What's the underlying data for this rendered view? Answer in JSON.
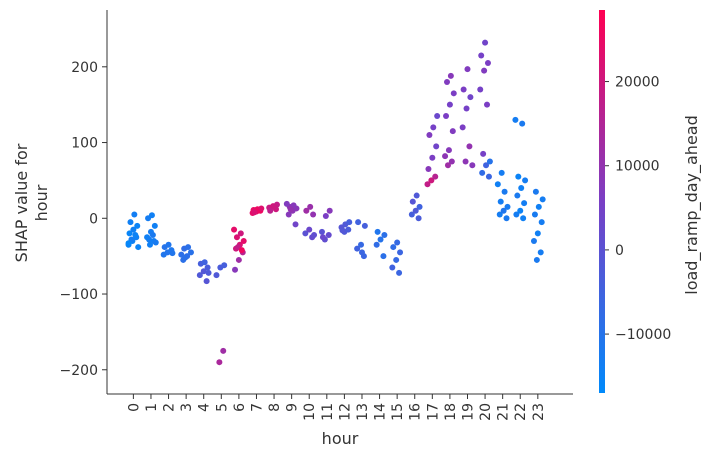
{
  "chart_data": {
    "type": "scatter",
    "subtype": "shap_dependence",
    "xlabel": "hour",
    "ylabel_lines": [
      "SHAP value for",
      "hour"
    ],
    "x_ticks": [
      0,
      1,
      2,
      3,
      4,
      5,
      6,
      7,
      8,
      9,
      10,
      11,
      12,
      13,
      14,
      15,
      16,
      17,
      18,
      19,
      20,
      21,
      22,
      23
    ],
    "y_ticks": [
      200,
      100,
      0,
      -100,
      -200
    ],
    "y_tick_labels": [
      "200",
      "100",
      "0",
      "−100",
      "−200"
    ],
    "xlim": [
      -1.5,
      25
    ],
    "ylim": [
      -232,
      275
    ],
    "colorbar": {
      "label": "load_ramp_day_ahead",
      "min": -17000,
      "max": 28500,
      "ticks": [
        20000,
        10000,
        0,
        -10000
      ],
      "tick_labels": [
        "20000",
        "10000",
        "0",
        "−10000"
      ],
      "color_low": "#008afb",
      "color_mid": "#7a3fc5",
      "color_high": "#ff0052"
    },
    "points": [
      {
        "hour": 0,
        "shap": -35,
        "feat": -15000
      },
      {
        "hour": 0,
        "shap": -30,
        "feat": -14500
      },
      {
        "hour": 0,
        "shap": -25,
        "feat": -14000
      },
      {
        "hour": 0,
        "shap": -20,
        "feat": -15500
      },
      {
        "hour": 0,
        "shap": -15,
        "feat": -14000
      },
      {
        "hour": 0,
        "shap": -10,
        "feat": -15000
      },
      {
        "hour": 0,
        "shap": -5,
        "feat": -14000
      },
      {
        "hour": 0,
        "shap": 5,
        "feat": -13500
      },
      {
        "hour": 0,
        "shap": -38,
        "feat": -15000
      },
      {
        "hour": 0,
        "shap": -28,
        "feat": -13000
      },
      {
        "hour": 0,
        "shap": -22,
        "feat": -14500
      },
      {
        "hour": 0,
        "shap": -33,
        "feat": -16000
      },
      {
        "hour": 1,
        "shap": -35,
        "feat": -14000
      },
      {
        "hour": 1,
        "shap": -30,
        "feat": -13500
      },
      {
        "hour": 1,
        "shap": -25,
        "feat": -14000
      },
      {
        "hour": 1,
        "shap": -18,
        "feat": -13000
      },
      {
        "hour": 1,
        "shap": -10,
        "feat": -14000
      },
      {
        "hour": 1,
        "shap": 0,
        "feat": -13000
      },
      {
        "hour": 1,
        "shap": 4,
        "feat": -14000
      },
      {
        "hour": 1,
        "shap": -32,
        "feat": -12500
      },
      {
        "hour": 1,
        "shap": -28,
        "feat": -13500
      },
      {
        "hour": 1,
        "shap": -22,
        "feat": -12000
      },
      {
        "hour": 2,
        "shap": -48,
        "feat": -11000
      },
      {
        "hour": 2,
        "shap": -45,
        "feat": -10500
      },
      {
        "hour": 2,
        "shap": -42,
        "feat": -11500
      },
      {
        "hour": 2,
        "shap": -38,
        "feat": -10000
      },
      {
        "hour": 2,
        "shap": -35,
        "feat": -11000
      },
      {
        "hour": 2,
        "shap": -46,
        "feat": -10800
      },
      {
        "hour": 3,
        "shap": -55,
        "feat": -9000
      },
      {
        "hour": 3,
        "shap": -50,
        "feat": -8500
      },
      {
        "hour": 3,
        "shap": -45,
        "feat": -9500
      },
      {
        "hour": 3,
        "shap": -40,
        "feat": -8000
      },
      {
        "hour": 3,
        "shap": -38,
        "feat": -9000
      },
      {
        "hour": 3,
        "shap": -48,
        "feat": -8800
      },
      {
        "hour": 3,
        "shap": -52,
        "feat": -9200
      },
      {
        "hour": 4,
        "shap": -83,
        "feat": -1000
      },
      {
        "hour": 4,
        "shap": -75,
        "feat": -2000
      },
      {
        "hour": 4,
        "shap": -70,
        "feat": -1500
      },
      {
        "hour": 4,
        "shap": -65,
        "feat": -3000
      },
      {
        "hour": 4,
        "shap": -60,
        "feat": -4000
      },
      {
        "hour": 4,
        "shap": -58,
        "feat": -5000
      },
      {
        "hour": 4,
        "shap": -72,
        "feat": -2500
      },
      {
        "hour": 5,
        "shap": -190,
        "feat": 14000
      },
      {
        "hour": 5,
        "shap": -175,
        "feat": 12000
      },
      {
        "hour": 5,
        "shap": -75,
        "feat": -2000
      },
      {
        "hour": 5,
        "shap": -65,
        "feat": -3000
      },
      {
        "hour": 5,
        "shap": -62,
        "feat": -4000
      },
      {
        "hour": 6,
        "shap": -68,
        "feat": 8000
      },
      {
        "hour": 6,
        "shap": -55,
        "feat": 12000
      },
      {
        "hour": 6,
        "shap": -45,
        "feat": 16000
      },
      {
        "hour": 6,
        "shap": -40,
        "feat": 20000
      },
      {
        "hour": 6,
        "shap": -35,
        "feat": 22000
      },
      {
        "hour": 6,
        "shap": -30,
        "feat": 24000
      },
      {
        "hour": 6,
        "shap": -25,
        "feat": 22000
      },
      {
        "hour": 6,
        "shap": -20,
        "feat": 20000
      },
      {
        "hour": 6,
        "shap": -15,
        "feat": 24000
      },
      {
        "hour": 6,
        "shap": -38,
        "feat": 18000
      },
      {
        "hour": 6,
        "shap": -42,
        "feat": 26000
      },
      {
        "hour": 7,
        "shap": 7,
        "feat": 24000
      },
      {
        "hour": 7,
        "shap": 9,
        "feat": 25000
      },
      {
        "hour": 7,
        "shap": 10,
        "feat": 26000
      },
      {
        "hour": 7,
        "shap": 11,
        "feat": 24500
      },
      {
        "hour": 7,
        "shap": 12,
        "feat": 25500
      },
      {
        "hour": 7,
        "shap": 13,
        "feat": 23000
      },
      {
        "hour": 7,
        "shap": 8,
        "feat": 22000
      },
      {
        "hour": 8,
        "shap": 12,
        "feat": 20000
      },
      {
        "hour": 8,
        "shap": 14,
        "feat": 19000
      },
      {
        "hour": 8,
        "shap": 16,
        "feat": 21000
      },
      {
        "hour": 8,
        "shap": 18,
        "feat": 18000
      },
      {
        "hour": 8,
        "shap": 10,
        "feat": 17000
      },
      {
        "hour": 8,
        "shap": 15,
        "feat": 19500
      },
      {
        "hour": 9,
        "shap": -8,
        "feat": 4000
      },
      {
        "hour": 9,
        "shap": 5,
        "feat": 8000
      },
      {
        "hour": 9,
        "shap": 10,
        "feat": 9000
      },
      {
        "hour": 9,
        "shap": 13,
        "feat": 8500
      },
      {
        "hour": 9,
        "shap": 15,
        "feat": 9500
      },
      {
        "hour": 9,
        "shap": 17,
        "feat": 8000
      },
      {
        "hour": 9,
        "shap": 19,
        "feat": 7000
      },
      {
        "hour": 9,
        "shap": 12,
        "feat": 10000
      },
      {
        "hour": 10,
        "shap": -25,
        "feat": 2000
      },
      {
        "hour": 10,
        "shap": -20,
        "feat": 0
      },
      {
        "hour": 10,
        "shap": -15,
        "feat": 3000
      },
      {
        "hour": 10,
        "shap": 5,
        "feat": 10000
      },
      {
        "hour": 10,
        "shap": 10,
        "feat": 12000
      },
      {
        "hour": 10,
        "shap": 15,
        "feat": 11000
      },
      {
        "hour": 10,
        "shap": -22,
        "feat": 1000
      },
      {
        "hour": 11,
        "shap": -28,
        "feat": 1000
      },
      {
        "hour": 11,
        "shap": -22,
        "feat": 2000
      },
      {
        "hour": 11,
        "shap": -18,
        "feat": 0
      },
      {
        "hour": 11,
        "shap": 3,
        "feat": 6000
      },
      {
        "hour": 11,
        "shap": 10,
        "feat": 8000
      },
      {
        "hour": 11,
        "shap": -25,
        "feat": 3000
      },
      {
        "hour": 12,
        "shap": -18,
        "feat": -2000
      },
      {
        "hour": 12,
        "shap": -15,
        "feat": -3000
      },
      {
        "hour": 12,
        "shap": -12,
        "feat": -1000
      },
      {
        "hour": 12,
        "shap": -8,
        "feat": -2000
      },
      {
        "hour": 12,
        "shap": -5,
        "feat": -4000
      },
      {
        "hour": 12,
        "shap": -16,
        "feat": -1500
      },
      {
        "hour": 13,
        "shap": -50,
        "feat": -6000
      },
      {
        "hour": 13,
        "shap": -40,
        "feat": -5000
      },
      {
        "hour": 13,
        "shap": -35,
        "feat": -7000
      },
      {
        "hour": 13,
        "shap": -10,
        "feat": -4000
      },
      {
        "hour": 13,
        "shap": -5,
        "feat": -5000
      },
      {
        "hour": 13,
        "shap": -45,
        "feat": -6000
      },
      {
        "hour": 14,
        "shap": -50,
        "feat": -9000
      },
      {
        "hour": 14,
        "shap": -35,
        "feat": -8000
      },
      {
        "hour": 14,
        "shap": -28,
        "feat": -10000
      },
      {
        "hour": 14,
        "shap": -22,
        "feat": -9000
      },
      {
        "hour": 14,
        "shap": -18,
        "feat": -11000
      },
      {
        "hour": 15,
        "shap": -72,
        "feat": -6000
      },
      {
        "hour": 15,
        "shap": -65,
        "feat": -5000
      },
      {
        "hour": 15,
        "shap": -55,
        "feat": -7000
      },
      {
        "hour": 15,
        "shap": -45,
        "feat": -6000
      },
      {
        "hour": 15,
        "shap": -38,
        "feat": -8000
      },
      {
        "hour": 15,
        "shap": -32,
        "feat": -7000
      },
      {
        "hour": 16,
        "shap": 0,
        "feat": -3000
      },
      {
        "hour": 16,
        "shap": 5,
        "feat": -4000
      },
      {
        "hour": 16,
        "shap": 10,
        "feat": -2000
      },
      {
        "hour": 16,
        "shap": 15,
        "feat": -5000
      },
      {
        "hour": 16,
        "shap": 22,
        "feat": -1000
      },
      {
        "hour": 16,
        "shap": 30,
        "feat": -2000
      },
      {
        "hour": 17,
        "shap": 45,
        "feat": 18000
      },
      {
        "hour": 17,
        "shap": 50,
        "feat": 20000
      },
      {
        "hour": 17,
        "shap": 55,
        "feat": 16000
      },
      {
        "hour": 17,
        "shap": 65,
        "feat": 8000
      },
      {
        "hour": 17,
        "shap": 80,
        "feat": 6000
      },
      {
        "hour": 17,
        "shap": 95,
        "feat": 4000
      },
      {
        "hour": 17,
        "shap": 110,
        "feat": 7000
      },
      {
        "hour": 17,
        "shap": 120,
        "feat": 5000
      },
      {
        "hour": 17,
        "shap": 135,
        "feat": 3000
      },
      {
        "hour": 18,
        "shap": 70,
        "feat": 12000
      },
      {
        "hour": 18,
        "shap": 75,
        "feat": 10000
      },
      {
        "hour": 18,
        "shap": 82,
        "feat": 9000
      },
      {
        "hour": 18,
        "shap": 90,
        "feat": 8000
      },
      {
        "hour": 18,
        "shap": 115,
        "feat": 7000
      },
      {
        "hour": 18,
        "shap": 135,
        "feat": 6000
      },
      {
        "hour": 18,
        "shap": 150,
        "feat": 5000
      },
      {
        "hour": 18,
        "shap": 165,
        "feat": 6000
      },
      {
        "hour": 18,
        "shap": 180,
        "feat": 7000
      },
      {
        "hour": 18,
        "shap": 188,
        "feat": 8000
      },
      {
        "hour": 19,
        "shap": 70,
        "feat": 8000
      },
      {
        "hour": 19,
        "shap": 75,
        "feat": 9000
      },
      {
        "hour": 19,
        "shap": 95,
        "feat": 10000
      },
      {
        "hour": 19,
        "shap": 120,
        "feat": 6000
      },
      {
        "hour": 19,
        "shap": 145,
        "feat": 5000
      },
      {
        "hour": 19,
        "shap": 160,
        "feat": 4000
      },
      {
        "hour": 19,
        "shap": 170,
        "feat": 6000
      },
      {
        "hour": 19,
        "shap": 197,
        "feat": 7000
      },
      {
        "hour": 20,
        "shap": 55,
        "feat": -6000
      },
      {
        "hour": 20,
        "shap": 60,
        "feat": -8000
      },
      {
        "hour": 20,
        "shap": 70,
        "feat": -5000
      },
      {
        "hour": 20,
        "shap": 75,
        "feat": -10000
      },
      {
        "hour": 20,
        "shap": 85,
        "feat": 5000
      },
      {
        "hour": 20,
        "shap": 150,
        "feat": 6000
      },
      {
        "hour": 20,
        "shap": 170,
        "feat": 5000
      },
      {
        "hour": 20,
        "shap": 195,
        "feat": 7000
      },
      {
        "hour": 20,
        "shap": 205,
        "feat": 6000
      },
      {
        "hour": 20,
        "shap": 215,
        "feat": 5000
      },
      {
        "hour": 20,
        "shap": 232,
        "feat": 4000
      },
      {
        "hour": 21,
        "shap": 0,
        "feat": -12000
      },
      {
        "hour": 21,
        "shap": 5,
        "feat": -13000
      },
      {
        "hour": 21,
        "shap": 10,
        "feat": -11000
      },
      {
        "hour": 21,
        "shap": 15,
        "feat": -12500
      },
      {
        "hour": 21,
        "shap": 22,
        "feat": -13000
      },
      {
        "hour": 21,
        "shap": 35,
        "feat": -12000
      },
      {
        "hour": 21,
        "shap": 45,
        "feat": -14000
      },
      {
        "hour": 21,
        "shap": 60,
        "feat": -13000
      },
      {
        "hour": 22,
        "shap": 0,
        "feat": -14000
      },
      {
        "hour": 22,
        "shap": 5,
        "feat": -13000
      },
      {
        "hour": 22,
        "shap": 10,
        "feat": -14500
      },
      {
        "hour": 22,
        "shap": 20,
        "feat": -13500
      },
      {
        "hour": 22,
        "shap": 30,
        "feat": -12000
      },
      {
        "hour": 22,
        "shap": 40,
        "feat": -14000
      },
      {
        "hour": 22,
        "shap": 50,
        "feat": -13000
      },
      {
        "hour": 22,
        "shap": 55,
        "feat": -15000
      },
      {
        "hour": 22,
        "shap": 125,
        "feat": -12000
      },
      {
        "hour": 22,
        "shap": 130,
        "feat": -13000
      },
      {
        "hour": 23,
        "shap": -55,
        "feat": -12000
      },
      {
        "hour": 23,
        "shap": -45,
        "feat": -13000
      },
      {
        "hour": 23,
        "shap": -30,
        "feat": -12000
      },
      {
        "hour": 23,
        "shap": -20,
        "feat": -14000
      },
      {
        "hour": 23,
        "shap": -5,
        "feat": -13000
      },
      {
        "hour": 23,
        "shap": 5,
        "feat": -12500
      },
      {
        "hour": 23,
        "shap": 15,
        "feat": -14000
      },
      {
        "hour": 23,
        "shap": 25,
        "feat": -13000
      },
      {
        "hour": 23,
        "shap": 35,
        "feat": -12000
      }
    ]
  }
}
